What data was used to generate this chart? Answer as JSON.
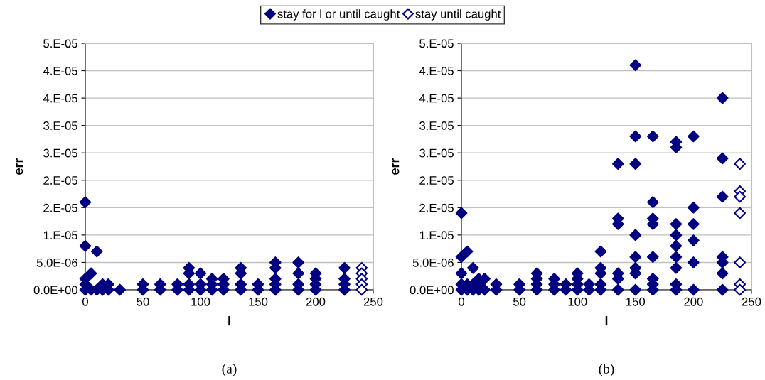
{
  "chart_data": [
    {
      "type": "scatter",
      "xlabel": "l",
      "ylabel": "err",
      "annotations": [
        "(a)"
      ],
      "legend": "top",
      "grid": "y",
      "marker": "diamond",
      "xlim": [
        0,
        250
      ],
      "xticks": [
        0,
        50,
        100,
        150,
        200,
        250
      ],
      "ylim": [
        0,
        4.5e-05
      ],
      "yticks": [
        {
          "value": 0,
          "label": "0.0E+00"
        },
        {
          "value": 5e-06,
          "label": "5.0E-06"
        },
        {
          "value": 1e-05,
          "label": "1.E-05"
        },
        {
          "value": 1.5e-05,
          "label": "2.E-05"
        },
        {
          "value": 2e-05,
          "label": "2.E-05"
        },
        {
          "value": 2.5e-05,
          "label": "3.E-05"
        },
        {
          "value": 3e-05,
          "label": "3.E-05"
        },
        {
          "value": 3.5e-05,
          "label": "4.E-05"
        },
        {
          "value": 4e-05,
          "label": "4.E-05"
        },
        {
          "value": 4.5e-05,
          "label": "5.E-05"
        }
      ],
      "series": [
        {
          "name": "stay for l or until caught",
          "color": "#000080",
          "x": [
            0,
            0,
            0,
            0,
            0,
            5,
            5,
            10,
            10,
            15,
            15,
            20,
            20,
            30,
            50,
            50,
            65,
            65,
            80,
            80,
            90,
            90,
            90,
            90,
            100,
            100,
            100,
            110,
            110,
            110,
            120,
            120,
            120,
            135,
            135,
            135,
            135,
            150,
            150,
            165,
            165,
            165,
            165,
            165,
            185,
            185,
            185,
            185,
            200,
            200,
            200,
            200,
            225,
            225,
            225,
            225
          ],
          "values": [
            1.6e-05,
            8e-06,
            2e-06,
            1e-06,
            0,
            3e-06,
            0,
            7e-06,
            0,
            1e-06,
            0,
            1e-06,
            0,
            0,
            1e-06,
            0,
            1e-06,
            0,
            1e-06,
            0,
            4e-06,
            3e-06,
            1e-06,
            0,
            3e-06,
            1e-06,
            0,
            2e-06,
            1e-06,
            0,
            2e-06,
            1e-06,
            0,
            4e-06,
            3e-06,
            1e-06,
            0,
            1e-06,
            0,
            5e-06,
            4e-06,
            2e-06,
            1e-06,
            0,
            5e-06,
            3e-06,
            1e-06,
            0,
            3e-06,
            2e-06,
            1e-06,
            0,
            4e-06,
            2e-06,
            1e-06,
            0
          ]
        },
        {
          "name": "stay until caught",
          "color": "#000080",
          "x": [
            240,
            240,
            240,
            240,
            240
          ],
          "values": [
            4e-06,
            3e-06,
            2e-06,
            1e-06,
            0
          ]
        }
      ]
    },
    {
      "type": "scatter",
      "xlabel": "l",
      "ylabel": "err",
      "annotations": [
        "(b)"
      ],
      "grid": "y",
      "marker": "diamond",
      "xlim": [
        0,
        250
      ],
      "xticks": [
        0,
        50,
        100,
        150,
        200,
        250
      ],
      "ylim": [
        0,
        4.5e-05
      ],
      "yticks": [
        {
          "value": 0,
          "label": "0.0E+00"
        },
        {
          "value": 5e-06,
          "label": "5.0E-06"
        },
        {
          "value": 1e-05,
          "label": "1.E-05"
        },
        {
          "value": 1.5e-05,
          "label": "2.E-05"
        },
        {
          "value": 2e-05,
          "label": "2.E-05"
        },
        {
          "value": 2.5e-05,
          "label": "3.E-05"
        },
        {
          "value": 3e-05,
          "label": "3.E-05"
        },
        {
          "value": 3.5e-05,
          "label": "4.E-05"
        },
        {
          "value": 4e-05,
          "label": "4.E-05"
        },
        {
          "value": 4.5e-05,
          "label": "5.E-05"
        }
      ],
      "series": [
        {
          "name": "stay for l or until caught",
          "color": "#000080",
          "x": [
            0,
            0,
            0,
            0,
            0,
            5,
            5,
            5,
            10,
            10,
            10,
            15,
            15,
            15,
            20,
            20,
            30,
            30,
            50,
            50,
            65,
            65,
            65,
            65,
            80,
            80,
            80,
            90,
            90,
            100,
            100,
            100,
            100,
            110,
            110,
            120,
            120,
            120,
            120,
            120,
            135,
            135,
            135,
            135,
            135,
            135,
            150,
            150,
            150,
            150,
            150,
            150,
            150,
            150,
            165,
            165,
            165,
            165,
            165,
            165,
            165,
            165,
            185,
            185,
            185,
            185,
            185,
            185,
            185,
            185,
            185,
            200,
            200,
            200,
            200,
            200,
            200,
            225,
            225,
            225,
            225,
            225,
            225,
            225
          ],
          "values": [
            1.4e-05,
            6e-06,
            3e-06,
            1e-06,
            0,
            7e-06,
            1e-06,
            0,
            4e-06,
            1e-06,
            0,
            2e-06,
            1e-06,
            0,
            2e-06,
            0,
            1e-06,
            0,
            1e-06,
            0,
            3e-06,
            2e-06,
            1e-06,
            0,
            2e-06,
            1e-06,
            0,
            1e-06,
            0,
            3e-06,
            2e-06,
            1e-06,
            0,
            1e-06,
            0,
            7e-06,
            4e-06,
            3e-06,
            1e-06,
            0,
            2.3e-05,
            1.3e-05,
            1.2e-05,
            3e-06,
            2e-06,
            0,
            4.1e-05,
            2.8e-05,
            2.3e-05,
            1e-05,
            6e-06,
            4e-06,
            3e-06,
            0,
            2.8e-05,
            1.6e-05,
            1.3e-05,
            1.2e-05,
            6e-06,
            2e-06,
            1e-06,
            0,
            2.7e-05,
            2.6e-05,
            1.2e-05,
            1e-05,
            8e-06,
            6e-06,
            4e-06,
            1e-06,
            0,
            2.8e-05,
            1.5e-05,
            1.2e-05,
            9e-06,
            5e-06,
            0,
            3.5e-05,
            2.4e-05,
            1.7e-05,
            6e-06,
            5e-06,
            3e-06,
            0
          ]
        },
        {
          "name": "stay until caught",
          "color": "#000080",
          "x": [
            240,
            240,
            240,
            240,
            240,
            240,
            240
          ],
          "values": [
            2.3e-05,
            1.8e-05,
            1.7e-05,
            1.4e-05,
            5e-06,
            1e-06,
            0
          ]
        }
      ]
    }
  ]
}
